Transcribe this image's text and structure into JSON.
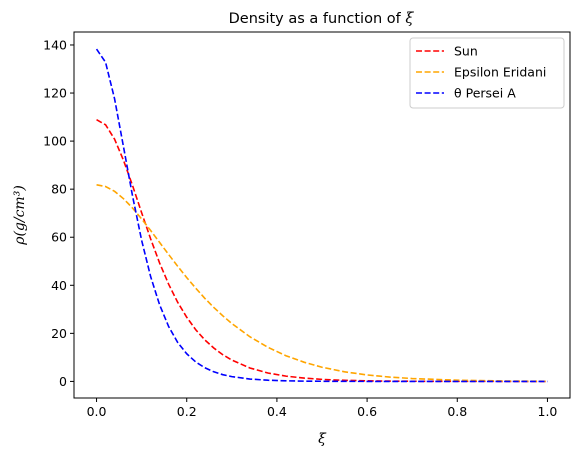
{
  "chart_data": {
    "type": "line",
    "title_prefix": "Density as a function of ",
    "title_symbol": "ξ",
    "xlabel": "ξ",
    "ylabel": "ρ(g/cm³)",
    "xlim": [
      -0.05,
      1.05
    ],
    "ylim": [
      -6.9,
      145.4
    ],
    "xticks": [
      0.0,
      0.2,
      0.4,
      0.6,
      0.8,
      1.0
    ],
    "xtick_labels": [
      "0.0",
      "0.2",
      "0.4",
      "0.6",
      "0.8",
      "1.0"
    ],
    "yticks": [
      0,
      20,
      40,
      60,
      80,
      100,
      120,
      140
    ],
    "ytick_labels": [
      "0",
      "20",
      "40",
      "60",
      "80",
      "100",
      "120",
      "140"
    ],
    "grid": false,
    "legend_position": "top-right",
    "x": [
      0.0,
      0.02,
      0.04,
      0.06,
      0.08,
      0.1,
      0.12,
      0.14,
      0.16,
      0.18,
      0.2,
      0.22,
      0.24,
      0.26,
      0.28,
      0.3,
      0.34,
      0.38,
      0.42,
      0.46,
      0.5,
      0.55,
      0.6,
      0.65,
      0.7,
      0.8,
      0.9,
      1.0
    ],
    "series": [
      {
        "name": "Sun",
        "color": "#ff0000",
        "values": [
          108.9,
          106.8,
          100.8,
          91.9,
          81.4,
          70.2,
          59.3,
          49.2,
          40.4,
          32.9,
          26.7,
          21.5,
          17.3,
          13.9,
          11.1,
          8.9,
          5.6,
          3.5,
          2.2,
          1.4,
          0.85,
          0.45,
          0.24,
          0.13,
          0.07,
          0.02,
          0.01,
          0.0
        ]
      },
      {
        "name": "Epsilon Eridani",
        "color": "#ffa500",
        "values": [
          81.8,
          81.1,
          79.1,
          76.0,
          72.1,
          67.6,
          62.8,
          57.8,
          52.8,
          47.9,
          43.2,
          38.8,
          34.6,
          30.8,
          27.3,
          24.1,
          18.6,
          14.2,
          10.7,
          8.0,
          5.9,
          4.0,
          2.7,
          1.8,
          1.2,
          0.5,
          0.2,
          0.05
        ]
      },
      {
        "name": "θ Persei A",
        "color": "#0000ff",
        "values": [
          138.3,
          132.8,
          117.6,
          97.4,
          77.0,
          58.7,
          43.6,
          31.8,
          22.8,
          16.2,
          11.5,
          8.1,
          5.7,
          4.0,
          2.8,
          2.0,
          1.0,
          0.5,
          0.25,
          0.12,
          0.06,
          0.03,
          0.01,
          0.0,
          0.0,
          0.0,
          0.0,
          0.0
        ]
      }
    ]
  }
}
